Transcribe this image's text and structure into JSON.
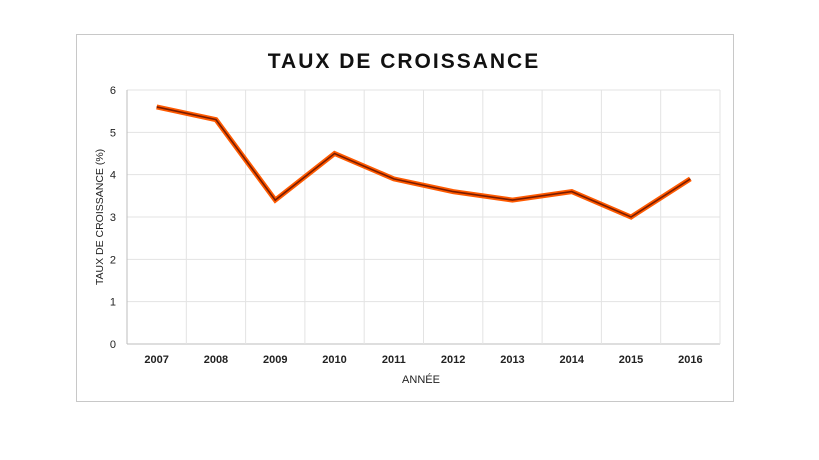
{
  "chart_data": {
    "type": "line",
    "title": "TAUX DE CROISSANCE",
    "xlabel": "ANNÉE",
    "ylabel": "TAUX DE CROISSANCE (%)",
    "categories": [
      "2007",
      "2008",
      "2009",
      "2010",
      "2011",
      "2012",
      "2013",
      "2014",
      "2015",
      "2016"
    ],
    "series": [
      {
        "name": "Taux de croissance",
        "values": [
          5.6,
          5.3,
          3.4,
          4.5,
          3.9,
          3.6,
          3.4,
          3.6,
          3.0,
          3.9
        ]
      }
    ],
    "ylim": [
      0,
      6
    ],
    "yticks": [
      0,
      1,
      2,
      3,
      4,
      5,
      6
    ],
    "grid": true,
    "colors": {
      "line_outer": "#ff5a00",
      "line_inner": "#7a1c00",
      "grid": "#e3e3e3"
    }
  }
}
